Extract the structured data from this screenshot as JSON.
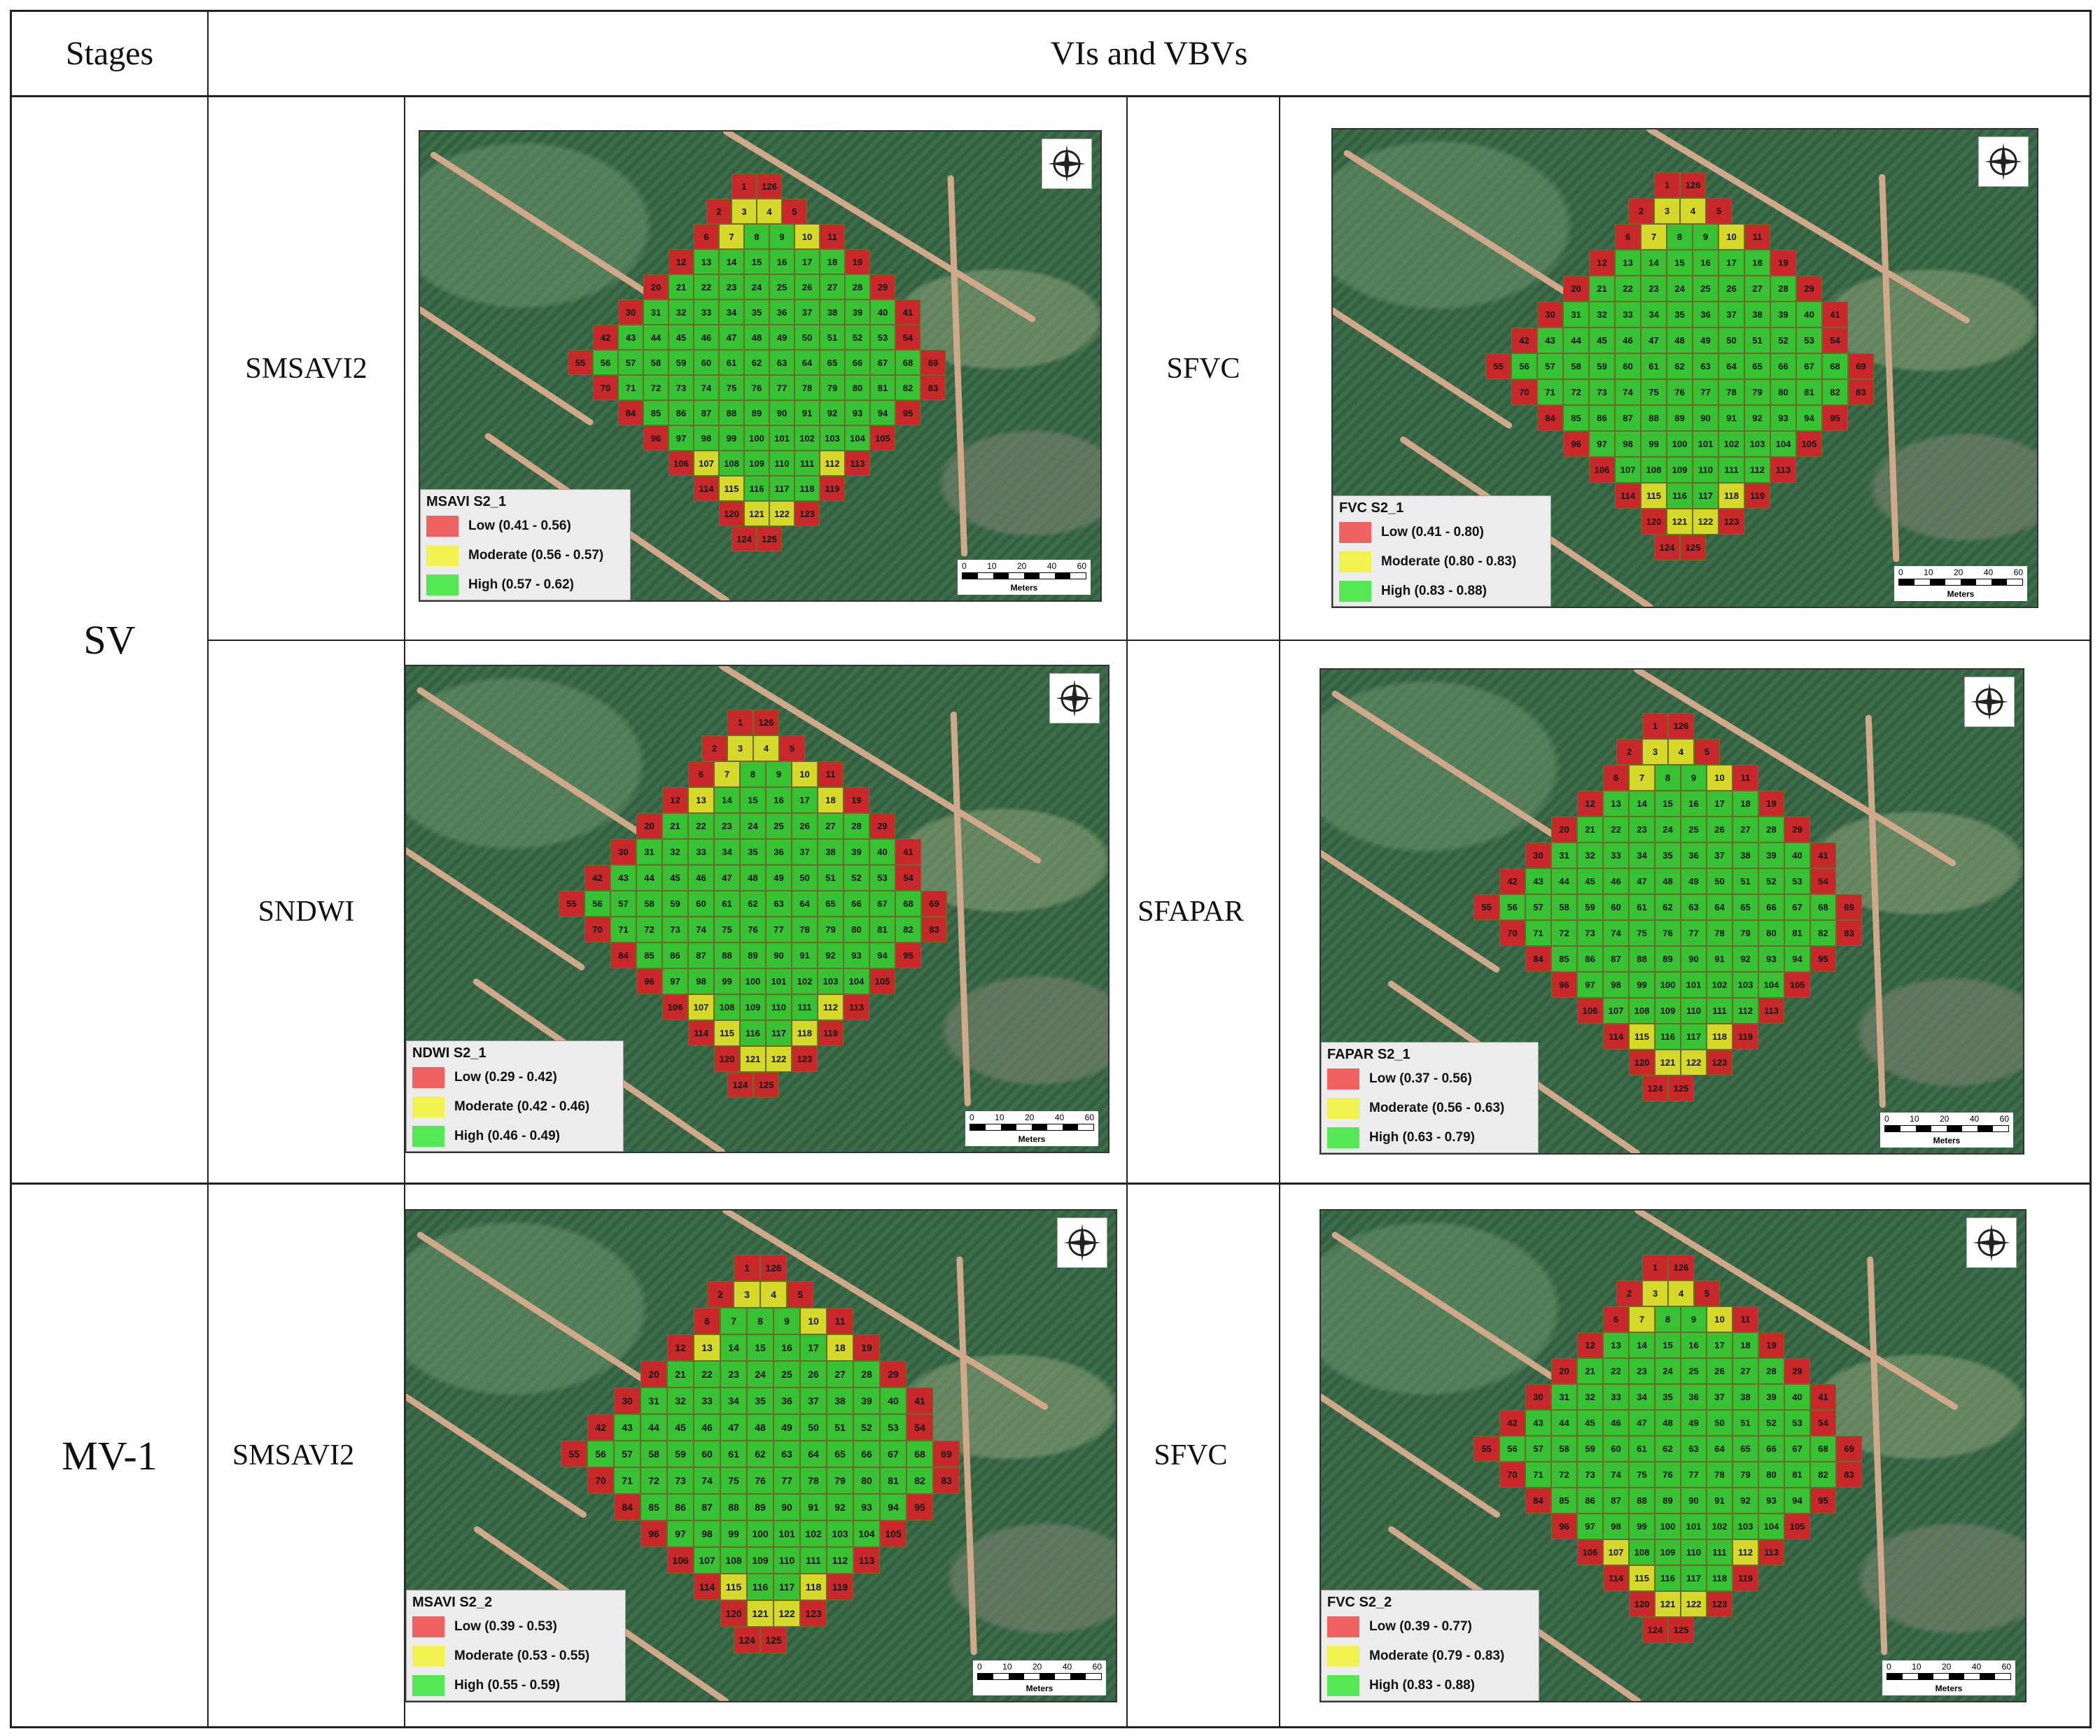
{
  "table": {
    "header": {
      "stages": "Stages",
      "vis": "VIs and VBVs"
    },
    "rows": [
      {
        "stage": "SV",
        "left_label": "SMSAVI2",
        "right_label": "SFVC"
      },
      {
        "left_label": "SNDWI",
        "right_label": "SFAPAR"
      },
      {
        "stage": "MV-1",
        "left_label": "SMSAVI2",
        "right_label": "SFVC"
      }
    ]
  },
  "colors": {
    "low": "#c8282a",
    "moderate": "#d6d92a",
    "high": "#36c232",
    "legend_low": "#f06262",
    "legend_mod": "#f2f250",
    "legend_high": "#55e855"
  },
  "scale": {
    "ticks": [
      "0",
      "10",
      "20",
      "40",
      "60"
    ],
    "unit": "Meters"
  },
  "maps": [
    {
      "title": "MSAVI S2_1",
      "low": "Low (0.41 - 0.56)",
      "moderate": "Moderate (0.56 - 0.57)",
      "high": "High (0.57 - 0.62)"
    },
    {
      "title": "FVC S2_1",
      "low": "Low (0.41 - 0.80)",
      "moderate": "Moderate (0.80 - 0.83)",
      "high": "High (0.83 - 0.88)"
    },
    {
      "title": "NDWI S2_1",
      "low": "Low (0.29 - 0.42)",
      "moderate": "Moderate (0.42 - 0.46)",
      "high": "High (0.46 - 0.49)"
    },
    {
      "title": "FAPAR S2_1",
      "low": "Low (0.37 - 0.56)",
      "moderate": "Moderate (0.56 - 0.63)",
      "high": "High (0.63 - 0.79)"
    },
    {
      "title": "MSAVI S2_2",
      "low": "Low (0.39 - 0.53)",
      "moderate": "Moderate (0.53 - 0.55)",
      "high": "High (0.55 - 0.59)"
    },
    {
      "title": "FVC S2_2",
      "low": "Low (0.39 - 0.77)",
      "moderate": "Moderate (0.79 - 0.83)",
      "high": "High (0.83 - 0.88)"
    }
  ]
}
